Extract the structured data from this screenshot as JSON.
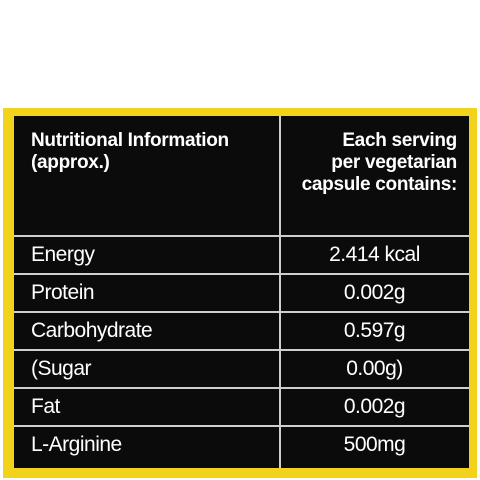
{
  "colors": {
    "border": "#f2d21b",
    "background": "#0b0b0b",
    "text": "#ffffff",
    "rule": "#cfcfcf"
  },
  "header": {
    "left_line1": "Nutritional Information",
    "left_line2": "(approx.)",
    "right_line1": "Each serving",
    "right_line2": "per vegetarian",
    "right_line3": "capsule contains:"
  },
  "rows": [
    {
      "name": "Energy",
      "value": "2.414 kcal"
    },
    {
      "name": "Protein",
      "value": "0.002g"
    },
    {
      "name": "Carbohydrate",
      "value": "0.597g"
    },
    {
      "name": "(Sugar",
      "value": "0.00g)"
    },
    {
      "name": "Fat",
      "value": "0.002g"
    },
    {
      "name": "L-Arginine",
      "value": "500mg"
    }
  ]
}
